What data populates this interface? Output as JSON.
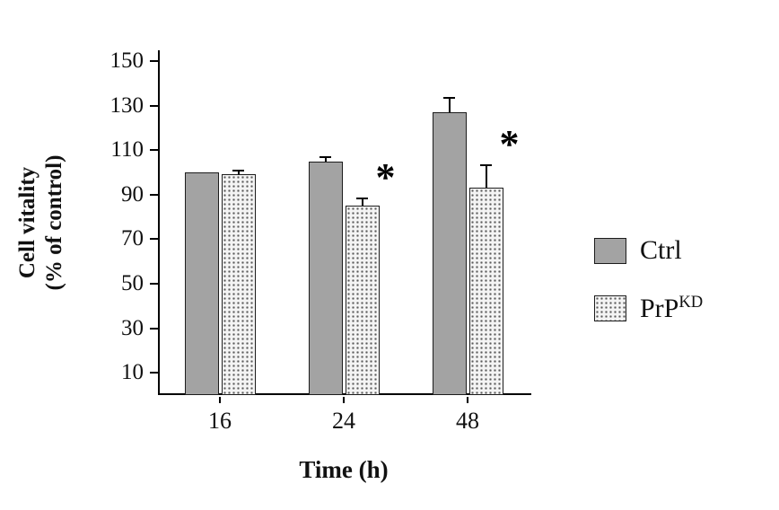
{
  "chart_data": {
    "type": "bar",
    "title": "",
    "xlabel": "Time (h)",
    "ylabel": "Cell vitality (% of control)",
    "ylabel_line1": "Cell vitality",
    "ylabel_line2": "(% of control)",
    "categories": [
      "16",
      "24",
      "48"
    ],
    "series": [
      {
        "name": "Ctrl",
        "values": [
          100,
          105,
          127
        ],
        "errors": [
          0,
          1.5,
          6
        ],
        "style": "solid-gray"
      },
      {
        "name": "PrPKD",
        "label_base": "PrP",
        "label_sup": "KD",
        "values": [
          99,
          85,
          93
        ],
        "errors": [
          1.5,
          3,
          10
        ],
        "style": "dotted"
      }
    ],
    "significance": [
      {
        "category": "24",
        "series": "PrPKD",
        "marker": "*"
      },
      {
        "category": "48",
        "series": "PrPKD",
        "marker": "*"
      }
    ],
    "ylim": [
      0,
      150
    ],
    "yticks": [
      10,
      30,
      50,
      70,
      90,
      110,
      130,
      150
    ],
    "grid": false,
    "legend_position": "right",
    "colors": {
      "ctrl_fill": "#a3a3a3",
      "bar_border": "#1c1c1c",
      "dot_color": "#5a5a5a",
      "dots_bg": "#f4f4f4"
    }
  }
}
